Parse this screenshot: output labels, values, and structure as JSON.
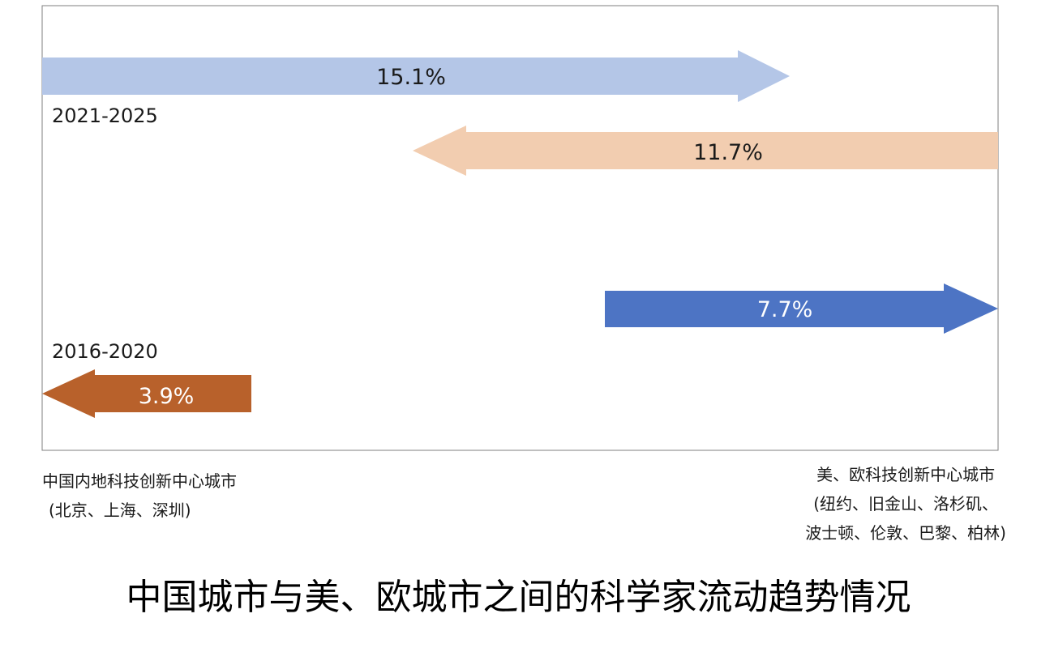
{
  "periods": {
    "recent": "2021-2025",
    "earlier": "2016-2020"
  },
  "flows": [
    {
      "value": "15.1%",
      "period": "2021-2025",
      "direction": "to-right",
      "from": "中国内地科技创新中心城市",
      "to": "美、欧科技创新中心城市",
      "color": "#b4c6e7",
      "text_color": "#1a1a1a"
    },
    {
      "value": "11.7%",
      "period": "2021-2025",
      "direction": "to-left",
      "from": "美、欧科技创新中心城市",
      "to": "中国内地科技创新中心城市",
      "color": "#f2cdb0",
      "text_color": "#1a1a1a"
    },
    {
      "value": "7.7%",
      "period": "2016-2020",
      "direction": "to-right",
      "from": "中国内地科技创新中心城市",
      "to": "美、欧科技创新中心城市",
      "color": "#4d74c4",
      "text_color": "#ffffff"
    },
    {
      "value": "3.9%",
      "period": "2016-2020",
      "direction": "to-left",
      "from": "美、欧科技创新中心城市",
      "to": "中国内地科技创新中心城市",
      "color": "#b8612b",
      "text_color": "#ffffff"
    }
  ],
  "left_label": {
    "line1": "中国内地科技创新中心城市",
    "line2": "(北京、上海、深圳)"
  },
  "right_label": {
    "line1": "美、欧科技创新中心城市",
    "line2": "(纽约、旧金山、洛杉矶、",
    "line3": "波士顿、伦敦、巴黎、柏林)"
  },
  "caption": "中国城市与美、欧城市之间的科学家流动趋势情况"
}
